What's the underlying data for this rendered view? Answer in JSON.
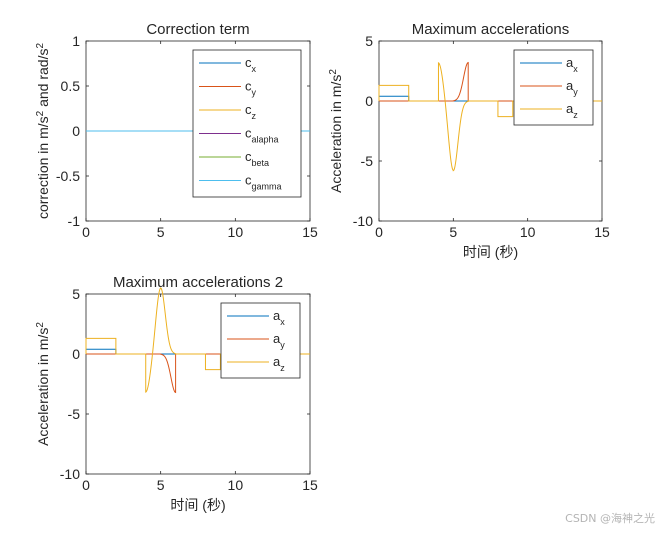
{
  "figure": {
    "xlabel_shared": "时间 (秒)"
  },
  "watermark": "CSDN @海神之光",
  "chart_data": [
    {
      "type": "line",
      "title": "Correction term",
      "xlabel": "",
      "ylabel": "correction in m/s^2 and rad/s^2",
      "xlim": [
        0,
        15
      ],
      "ylim": [
        -1,
        1
      ],
      "xticks": [
        0,
        5,
        10,
        15
      ],
      "yticks": [
        -1,
        -0.5,
        0,
        0.5,
        1
      ],
      "yticklabels": [
        "-1",
        "-0.5",
        "0",
        "0.5",
        "1"
      ],
      "legend_position": "top-right",
      "series": [
        {
          "name": "c",
          "sub": "x",
          "color": "#0072BD",
          "kind": "zero"
        },
        {
          "name": "c",
          "sub": "y",
          "color": "#D95319",
          "kind": "zero"
        },
        {
          "name": "c",
          "sub": "z",
          "color": "#EDB120",
          "kind": "zero"
        },
        {
          "name": "c",
          "sub": "alapha",
          "color": "#7E2F8E",
          "kind": "zero"
        },
        {
          "name": "c",
          "sub": "beta",
          "color": "#77AC30",
          "kind": "zero"
        },
        {
          "name": "c",
          "sub": "gamma",
          "color": "#4DBEEE",
          "kind": "zero"
        }
      ]
    },
    {
      "type": "line",
      "title": "Maximum accelerations",
      "xlabel": "时间 (秒)",
      "ylabel": "Acceleration in m/s^2",
      "xlim": [
        0,
        15
      ],
      "ylim": [
        -10,
        5
      ],
      "xticks": [
        0,
        5,
        10,
        15
      ],
      "yticks": [
        -10,
        -5,
        0,
        5
      ],
      "yticklabels": [
        "-10",
        "-5",
        "0",
        "5"
      ],
      "legend_position": "top-right",
      "series": [
        {
          "name": "a",
          "sub": "x",
          "color": "#0072BD",
          "kind": "step",
          "segments": [
            [
              0,
              2,
              0.4
            ]
          ]
        },
        {
          "name": "a",
          "sub": "y",
          "color": "#D95319",
          "kind": "bumps",
          "bumps": [
            [
              4,
              6,
              5,
              -5.8
            ],
            [
              5,
              6,
              6,
              3.2
            ]
          ]
        },
        {
          "name": "a",
          "sub": "z",
          "color": "#EDB120",
          "kind": "combo",
          "segments": [
            [
              0,
              2,
              1.3
            ],
            [
              8,
              9,
              -1.3
            ]
          ],
          "bumps": [
            [
              4,
              4,
              5,
              3.2
            ],
            [
              4,
              5,
              6,
              -5.8
            ]
          ]
        }
      ]
    },
    {
      "type": "line",
      "title": "Maximum accelerations 2",
      "xlabel": "时间 (秒)",
      "ylabel": "Acceleration in m/s^2",
      "xlim": [
        0,
        15
      ],
      "ylim": [
        -10,
        5
      ],
      "xticks": [
        0,
        5,
        10,
        15
      ],
      "yticks": [
        -10,
        -5,
        0,
        5
      ],
      "yticklabels": [
        "-10",
        "-5",
        "0",
        "5"
      ],
      "legend_position": "top-right",
      "series": [
        {
          "name": "a",
          "sub": "x",
          "color": "#0072BD",
          "kind": "step",
          "segments": [
            [
              0,
              2,
              0.4
            ]
          ]
        },
        {
          "name": "a",
          "sub": "y",
          "color": "#D95319",
          "kind": "bumps",
          "bumps": [
            [
              4,
              6,
              5,
              5.5
            ],
            [
              5,
              6,
              6,
              -3.2
            ]
          ]
        },
        {
          "name": "a",
          "sub": "z",
          "color": "#EDB120",
          "kind": "combo",
          "segments": [
            [
              0,
              2,
              1.3
            ],
            [
              8,
              9,
              -1.3
            ]
          ],
          "bumps": [
            [
              4,
              4,
              5,
              -3.2
            ],
            [
              4,
              5,
              6,
              5.5
            ]
          ]
        }
      ]
    }
  ]
}
